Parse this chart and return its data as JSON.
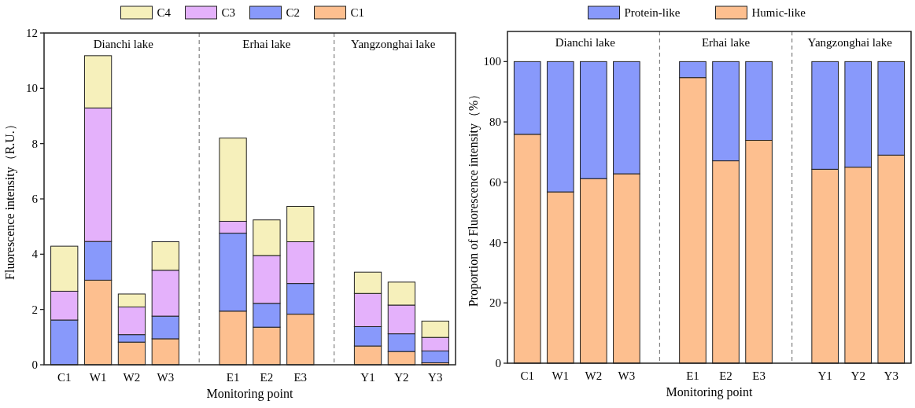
{
  "chart_data": [
    {
      "type": "bar",
      "stacked": true,
      "xlabel": "Monitoring point",
      "ylabel": "Fluorescence intensity（R.U.）",
      "categories": [
        "C1",
        "W1",
        "W2",
        "W3",
        null,
        "E1",
        "E2",
        "E3",
        null,
        "Y1",
        "Y2",
        "Y3"
      ],
      "series": [
        {
          "name": "C1",
          "color": "#fdbf8f",
          "values": [
            0,
            3.06,
            0.82,
            0.94,
            null,
            1.94,
            1.36,
            1.83,
            null,
            0.68,
            0.48,
            0.07
          ]
        },
        {
          "name": "C2",
          "color": "#8899fb",
          "values": [
            1.62,
            1.4,
            0.27,
            0.82,
            null,
            2.82,
            0.86,
            1.11,
            null,
            0.7,
            0.64,
            0.43
          ]
        },
        {
          "name": "C3",
          "color": "#e4b1fb",
          "values": [
            1.04,
            4.83,
            1.0,
            1.66,
            null,
            0.43,
            1.73,
            1.51,
            null,
            1.2,
            1.04,
            0.49
          ]
        },
        {
          "name": "C4",
          "color": "#f6f0bb",
          "values": [
            1.63,
            1.89,
            0.47,
            1.03,
            null,
            3.01,
            1.29,
            1.28,
            null,
            0.77,
            0.83,
            0.59
          ]
        }
      ],
      "ylim": [
        0,
        12
      ],
      "yticks": [
        0,
        2,
        4,
        6,
        8,
        10,
        12
      ],
      "legend": "top",
      "annotations": [
        "Dianchi lake",
        "Erhai lake",
        "Yangzonghai lake"
      ]
    },
    {
      "type": "bar",
      "stacked": true,
      "xlabel": "Monitoring point",
      "ylabel": "Proportion of  Fluorescence intensity（%）",
      "categories": [
        "C1",
        "W1",
        "W2",
        "W3",
        null,
        "E1",
        "E2",
        "E3",
        null,
        "Y1",
        "Y2",
        "Y3"
      ],
      "series": [
        {
          "name": "Humic-like",
          "color": "#fdbf8f",
          "values": [
            75.9,
            56.8,
            61.2,
            62.8,
            null,
            94.7,
            67.1,
            73.9,
            null,
            64.3,
            65.0,
            69.0
          ]
        },
        {
          "name": "Protein-like",
          "color": "#8899fb",
          "values": [
            24.1,
            43.2,
            38.8,
            37.2,
            null,
            5.3,
            32.9,
            26.1,
            null,
            35.7,
            35.0,
            31.0
          ]
        }
      ],
      "ylim": [
        0,
        110
      ],
      "yticks": [
        0,
        20,
        40,
        60,
        80,
        100
      ],
      "legend": "top",
      "annotations": [
        "Dianchi lake",
        "Erhai lake",
        "Yangzonghai lake"
      ]
    }
  ]
}
